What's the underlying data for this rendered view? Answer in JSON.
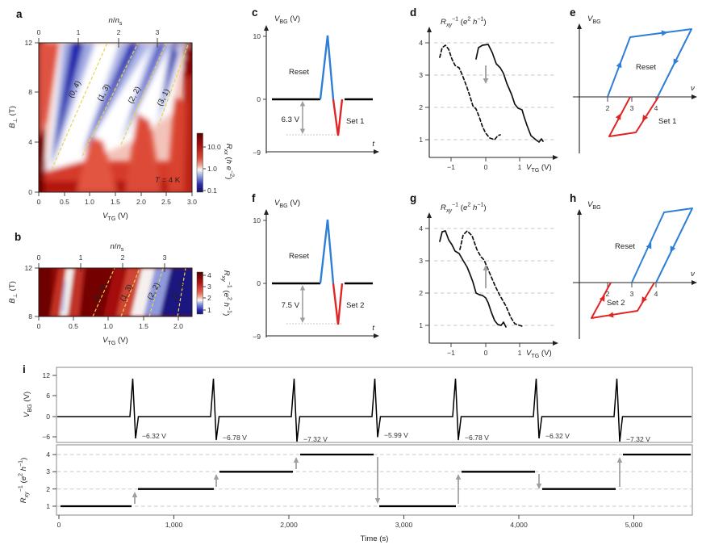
{
  "figure": {
    "background": "#ffffff",
    "description": "Multi-panel physics figure: gate-tunable quantum anomalous Hall memory"
  },
  "colors": {
    "blue": "#2e7fd6",
    "red": "#e02525",
    "gray_arrow": "#9e9e9e",
    "yellow_dash": "#e8d44d",
    "heat_dark_red": "#6e0303",
    "heat_dark_blue": "#1a1570"
  },
  "shared_labels": {
    "vtg": [
      {
        "t": "V",
        "i": 1
      },
      {
        "t": "TG",
        "s": "sub"
      },
      {
        "t": " (V)"
      }
    ],
    "vbg_v": [
      {
        "t": "V",
        "i": 1
      },
      {
        "t": "BG",
        "s": "sub"
      },
      {
        "t": " (V)"
      }
    ],
    "vbg": [
      {
        "t": "V",
        "i": 1
      },
      {
        "t": "BG",
        "s": "sub"
      }
    ],
    "rxx": [
      {
        "t": "R",
        "i": 1
      },
      {
        "t": "xx",
        "s": "sub",
        "i": 1
      },
      {
        "t": " ("
      },
      {
        "t": "h",
        "i": 1
      },
      {
        "t": " e",
        "i": 1
      },
      {
        "t": "−2",
        "s": "sup"
      },
      {
        "t": ")"
      }
    ],
    "rxy_inv": [
      {
        "t": "R",
        "i": 1
      },
      {
        "t": "xy",
        "s": "sub",
        "i": 1
      },
      {
        "t": "−1",
        "s": "sup"
      },
      {
        "t": " ("
      },
      {
        "t": "e",
        "i": 1
      },
      {
        "t": "2",
        "s": "sup"
      },
      {
        "t": " "
      },
      {
        "t": "h",
        "i": 1
      },
      {
        "t": "−1",
        "s": "sup"
      },
      {
        "t": ")"
      }
    ],
    "bperp": [
      {
        "t": "B",
        "i": 1
      },
      {
        "t": "⊥",
        "s": "sub"
      },
      {
        "t": " (T)"
      }
    ],
    "nns": [
      {
        "t": "n",
        "i": 1
      },
      {
        "t": "/"
      },
      {
        "t": "n",
        "i": 1
      },
      {
        "t": "s",
        "s": "sub"
      }
    ],
    "t_var": [
      {
        "t": "t",
        "i": 1
      }
    ],
    "nu_var": [
      {
        "t": "ν",
        "i": 1
      }
    ],
    "temperature": [
      {
        "t": "T",
        "i": 1
      },
      {
        "t": " = 4 K"
      }
    ],
    "time_s": "Time (s)"
  },
  "panels": {
    "a": {
      "letter": "a",
      "top_ticks": [
        "0",
        "1",
        "2",
        "3"
      ],
      "x_ticks": [
        "0",
        "0.5",
        "1.0",
        "1.5",
        "2.0",
        "2.5",
        "3.0"
      ],
      "y_ticks": [
        "0",
        "4",
        "8",
        "12"
      ],
      "cbar_ticks": [
        "10.0",
        "1.0",
        "0.1"
      ],
      "wedge_labels": [
        "(0, 4)",
        "(1, 3)",
        "(2, 2)",
        "(3, 1)"
      ]
    },
    "b": {
      "letter": "b",
      "top_ticks": [
        "0",
        "1",
        "2",
        "3"
      ],
      "x_ticks": [
        "0",
        "0.5",
        "1.0",
        "1.5",
        "2.0"
      ],
      "y_ticks": [
        "12",
        "8"
      ],
      "cbar_ticks": [
        "4",
        "3",
        "2",
        "1"
      ],
      "wedge_labels": [
        "(0, 4)",
        "(1, 3)",
        "(2, 2)",
        "(3, 1)"
      ]
    },
    "c": {
      "letter": "c",
      "y_ticks": [
        "10",
        "0",
        "−9"
      ],
      "reset": "Reset",
      "set": "Set 1",
      "delta": "6.3 V"
    },
    "d": {
      "letter": "d",
      "y_ticks": [
        "4",
        "3",
        "2",
        "1"
      ],
      "x_ticks": [
        "−1",
        "0",
        "1"
      ]
    },
    "e": {
      "letter": "e",
      "x_ticks": [
        "2",
        "3",
        "4"
      ],
      "reset": "Reset",
      "set": "Set 1"
    },
    "f": {
      "letter": "f",
      "y_ticks": [
        "10",
        "0",
        "−9"
      ],
      "reset": "Reset",
      "set": "Set 2",
      "delta": "7.5 V"
    },
    "g": {
      "letter": "g",
      "y_ticks": [
        "4",
        "3",
        "2",
        "1"
      ],
      "x_ticks": [
        "−1",
        "0",
        "1"
      ]
    },
    "h": {
      "letter": "h",
      "x_ticks": [
        "2",
        "3",
        "4"
      ],
      "reset": "Reset",
      "set": "Set 2"
    },
    "i": {
      "letter": "i",
      "top": {
        "y_ticks": [
          "12",
          "6",
          "0",
          "−6"
        ],
        "pulse_labels": [
          "−6.32 V",
          "−6.78 V",
          "−7.32 V",
          "−5.99 V",
          "−6.78 V",
          "−6.32 V",
          "−7.32 V"
        ]
      },
      "bottom": {
        "y_ticks": [
          "4",
          "3",
          "2",
          "1"
        ],
        "x_ticks": [
          "0",
          "1,000",
          "2,000",
          "3,000",
          "4,000",
          "5,000"
        ]
      }
    }
  },
  "chart_data": [
    {
      "panel": "a",
      "type": "heatmap",
      "xlabel": "V_TG (V)",
      "x_range": [
        0,
        3.0
      ],
      "ylabel": "B_perp (T)",
      "y_range": [
        0,
        12
      ],
      "top_axis": "n/n_s",
      "top_ticks": [
        0,
        1,
        2,
        3
      ],
      "color_label": "R_xx (h e^-2)",
      "color_scale": "log",
      "color_ticks": [
        10.0,
        1.0,
        0.1
      ],
      "annotation": "T = 4 K",
      "features": [
        {
          "label": "(0, 4)",
          "dashed_line_from": [
            0.25,
            1.8
          ],
          "dashed_line_to": [
            1.33,
            12
          ]
        },
        {
          "label": "(1, 3)",
          "dashed_line_from": [
            0.85,
            2.9
          ],
          "dashed_line_to": [
            1.95,
            12
          ]
        },
        {
          "label": "(2, 2)",
          "dashed_line_from": [
            1.6,
            3.8
          ],
          "dashed_line_to": [
            2.5,
            12
          ]
        },
        {
          "label": "(3, 1)",
          "dashed_line_from": [
            2.33,
            5.3
          ],
          "dashed_line_to": [
            2.94,
            12
          ]
        }
      ],
      "legend_position": "right"
    },
    {
      "panel": "b",
      "type": "heatmap",
      "xlabel": "V_TG (V)",
      "x_range": [
        0,
        2.2
      ],
      "ylabel": "B_perp (T)",
      "y_range": [
        8,
        12
      ],
      "top_axis": "n/n_s",
      "top_ticks": [
        0,
        1,
        2,
        3
      ],
      "color_label": "R_xy^-1 (e^2 h^-1)",
      "color_ticks": [
        4,
        3,
        2,
        1
      ],
      "features": [
        {
          "label": "(0, 4)",
          "dashed_line_from": [
            0.78,
            8
          ],
          "dashed_line_to": [
            1.09,
            12
          ]
        },
        {
          "label": "(1, 3)",
          "dashed_line_from": [
            1.18,
            8
          ],
          "dashed_line_to": [
            1.45,
            12
          ]
        },
        {
          "label": "(2, 2)",
          "dashed_line_from": [
            1.59,
            8
          ],
          "dashed_line_to": [
            1.78,
            12
          ]
        },
        {
          "label": "(3, 1)",
          "dashed_line_from": [
            1.99,
            8
          ],
          "dashed_line_to": [
            2.11,
            12
          ]
        }
      ]
    },
    {
      "panel": "c",
      "type": "line",
      "xlabel": "t",
      "ylabel": "V_BG (V)",
      "y_ticks": [
        10,
        0,
        -9
      ],
      "reset_pulse_peak_V": 10.3,
      "set_pulse_depth_V": -6.3,
      "delta_annotation": "6.3 V",
      "series_labels": [
        "Reset",
        "Set 1"
      ]
    },
    {
      "panel": "d",
      "type": "line",
      "xlabel": "V_TG (V)",
      "ylabel": "R_xy^-1 (e^2 h^-1)",
      "x_ticks": [
        -1,
        0,
        1
      ],
      "grid_y": [
        1,
        2,
        3,
        4
      ],
      "arrow": {
        "x": 0,
        "from_y": 3.35,
        "to_y": 2.65,
        "direction": "down"
      },
      "series": [
        {
          "name": "dashed",
          "x": [
            -1.35,
            -1.25,
            -1.15,
            -1.0,
            -0.85,
            -0.7,
            -0.55,
            -0.4,
            -0.3,
            -0.15,
            0.0,
            0.15,
            0.3,
            0.42
          ],
          "y": [
            3.55,
            3.85,
            3.92,
            3.6,
            3.25,
            3.0,
            2.6,
            2.2,
            1.95,
            1.6,
            1.2,
            1.02,
            1.0,
            1.15
          ]
        },
        {
          "name": "solid",
          "x": [
            -0.28,
            -0.15,
            0.0,
            0.15,
            0.3,
            0.45,
            0.6,
            0.75,
            0.9,
            1.05,
            1.2,
            1.35,
            1.5,
            1.68
          ],
          "y": [
            3.5,
            3.9,
            3.95,
            3.8,
            3.35,
            3.2,
            2.8,
            2.4,
            2.05,
            1.93,
            1.45,
            1.05,
            0.95,
            0.95
          ]
        }
      ]
    },
    {
      "panel": "e",
      "type": "diagram",
      "xlabel": "ν",
      "ylabel": "V_BG",
      "x_ticks": [
        2,
        3,
        4
      ],
      "loops": [
        {
          "name": "Reset",
          "color": "blue",
          "axis_crossings": [
            2,
            4
          ],
          "sense": "up from ν=2, across top, down at ν=4"
        },
        {
          "name": "Set 1",
          "color": "red",
          "axis_crossings": [
            3,
            4
          ],
          "sense": "down from ν=4, across bottom, up at ν=3"
        }
      ]
    },
    {
      "panel": "f",
      "type": "line",
      "xlabel": "t",
      "ylabel": "V_BG (V)",
      "y_ticks": [
        10,
        0,
        -9
      ],
      "reset_pulse_peak_V": 10.3,
      "set_pulse_depth_V": -7.5,
      "delta_annotation": "7.5 V",
      "series_labels": [
        "Reset",
        "Set 2"
      ]
    },
    {
      "panel": "g",
      "type": "line",
      "xlabel": "V_TG (V)",
      "ylabel": "R_xy^-1 (e^2 h^-1)",
      "x_ticks": [
        -1,
        0,
        1
      ],
      "grid_y": [
        1,
        2,
        3,
        4
      ],
      "arrow": {
        "x": 0,
        "from_y": 2.05,
        "to_y": 2.95,
        "direction": "up"
      },
      "series": [
        {
          "name": "solid",
          "x": [
            -1.35,
            -1.25,
            -1.15,
            -1.0,
            -0.85,
            -0.7,
            -0.55,
            -0.4,
            -0.25,
            -0.1,
            0.05,
            0.2,
            0.35,
            0.5,
            0.6
          ],
          "y": [
            3.6,
            3.9,
            3.95,
            3.55,
            3.2,
            3.1,
            2.8,
            2.4,
            2.0,
            1.95,
            1.7,
            1.2,
            1.0,
            1.1,
            0.97
          ]
        },
        {
          "name": "dashed",
          "x": [
            -0.75,
            -0.65,
            -0.55,
            -0.4,
            -0.25,
            -0.1,
            0.0,
            0.15,
            0.3,
            0.45,
            0.6,
            0.75,
            0.9,
            1.05
          ],
          "y": [
            3.35,
            3.8,
            3.93,
            3.7,
            3.3,
            3.05,
            2.9,
            2.55,
            2.15,
            1.9,
            1.5,
            1.15,
            1.0,
            0.97
          ]
        }
      ]
    },
    {
      "panel": "h",
      "type": "diagram",
      "xlabel": "ν",
      "ylabel": "V_BG",
      "x_ticks": [
        2,
        3,
        4
      ],
      "loops": [
        {
          "name": "Reset",
          "color": "blue",
          "axis_crossings": [
            3,
            4
          ],
          "sense": "up from ν=3, across top, down at ν=4"
        },
        {
          "name": "Set 2",
          "color": "red",
          "axis_crossings": [
            2.4,
            3.85
          ],
          "sense": "down from ν≈3.85, across bottom, up at ν≈2.4"
        }
      ]
    },
    {
      "panel": "i",
      "type": "line",
      "xlabel": "Time (s)",
      "x_ticks": [
        0,
        1000,
        2000,
        3000,
        4000,
        5000
      ],
      "top": {
        "ylabel": "V_BG (V)",
        "y_ticks": [
          12,
          6,
          0,
          -6
        ],
        "pulse_peak_V": 11,
        "pulses": [
          {
            "t": 645,
            "set_V": -6.32
          },
          {
            "t": 1350,
            "set_V": -6.78
          },
          {
            "t": 2050,
            "set_V": -7.32
          },
          {
            "t": 2750,
            "set_V": -5.99
          },
          {
            "t": 3455,
            "set_V": -6.78
          },
          {
            "t": 4155,
            "set_V": -6.32
          },
          {
            "t": 4855,
            "set_V": -7.32
          }
        ]
      },
      "bottom": {
        "ylabel": "R_xy^-1 (e^2 h^-1)",
        "grid_y": [
          1,
          2,
          3,
          4
        ],
        "levels": [
          {
            "t_start": 15,
            "t_end": 630,
            "value": 1
          },
          {
            "t_start": 680,
            "t_end": 1350,
            "value": 2
          },
          {
            "t_start": 1400,
            "t_end": 2035,
            "value": 3
          },
          {
            "t_start": 2100,
            "t_end": 2740,
            "value": 4
          },
          {
            "t_start": 2790,
            "t_end": 3450,
            "value": 1
          },
          {
            "t_start": 3500,
            "t_end": 4140,
            "value": 3
          },
          {
            "t_start": 4200,
            "t_end": 4840,
            "value": 2
          },
          {
            "t_start": 4905,
            "t_end": 5495,
            "value": 4
          }
        ]
      }
    }
  ]
}
